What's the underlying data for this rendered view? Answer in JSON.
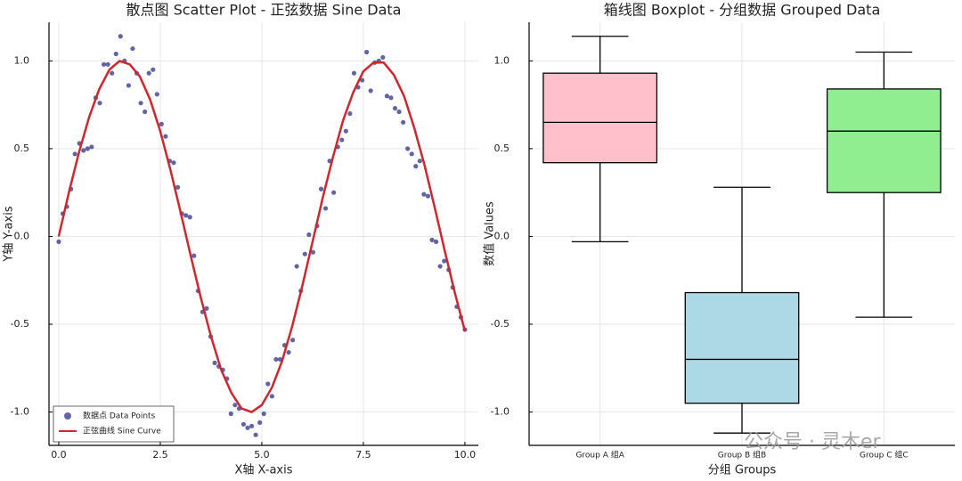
{
  "chart_data": [
    {
      "type": "scatter",
      "title": "散点图 Scatter Plot - 正弦数据 Sine Data",
      "xlabel": "X轴 X-axis",
      "ylabel": "Y轴 Y-axis",
      "xlim": [
        -0.24,
        10.33
      ],
      "ylim": [
        -1.19,
        1.22
      ],
      "xticks": [
        {
          "value": 0,
          "label": "0.0"
        },
        {
          "value": 2.5,
          "label": "2.5"
        },
        {
          "value": 5,
          "label": "5.0"
        },
        {
          "value": 7.5,
          "label": "7.5"
        },
        {
          "value": 10,
          "label": "10.0"
        }
      ],
      "yticks": [
        {
          "value": -1,
          "label": "-1.0"
        },
        {
          "value": -0.5,
          "label": "-0.5"
        },
        {
          "value": 0,
          "label": "0.0"
        },
        {
          "value": 0.5,
          "label": "0.5"
        },
        {
          "value": 1,
          "label": "1.0"
        }
      ],
      "grid": true,
      "legend": "bottom left",
      "series": [
        {
          "name": "数据点 Data Points",
          "type": "scatter",
          "color": "#3b3f8f",
          "x": [
            0.0,
            0.1,
            0.2,
            0.3,
            0.4,
            0.51,
            0.61,
            0.71,
            0.81,
            0.91,
            1.01,
            1.11,
            1.21,
            1.31,
            1.41,
            1.52,
            1.62,
            1.72,
            1.82,
            1.92,
            2.02,
            2.12,
            2.22,
            2.32,
            2.42,
            2.53,
            2.63,
            2.73,
            2.83,
            2.93,
            3.03,
            3.13,
            3.23,
            3.33,
            3.43,
            3.54,
            3.64,
            3.74,
            3.84,
            3.94,
            4.04,
            4.14,
            4.24,
            4.34,
            4.44,
            4.55,
            4.65,
            4.75,
            4.85,
            4.95,
            5.05,
            5.15,
            5.25,
            5.35,
            5.45,
            5.56,
            5.66,
            5.76,
            5.86,
            5.96,
            6.06,
            6.16,
            6.26,
            6.36,
            6.46,
            6.57,
            6.67,
            6.77,
            6.87,
            6.97,
            7.07,
            7.17,
            7.27,
            7.37,
            7.47,
            7.58,
            7.68,
            7.78,
            7.88,
            7.98,
            8.08,
            8.18,
            8.28,
            8.38,
            8.48,
            8.59,
            8.69,
            8.79,
            8.89,
            8.99,
            9.09,
            9.19,
            9.29,
            9.39,
            9.49,
            9.6,
            9.7,
            9.8,
            9.9,
            10.0
          ],
          "values": [
            -0.03,
            0.13,
            0.17,
            0.27,
            0.47,
            0.53,
            0.49,
            0.5,
            0.51,
            0.79,
            0.76,
            0.98,
            0.98,
            0.93,
            1.04,
            1.14,
            1.0,
            0.86,
            1.07,
            0.93,
            0.76,
            0.71,
            0.93,
            0.95,
            0.81,
            0.64,
            0.57,
            0.43,
            0.42,
            0.28,
            0.13,
            0.12,
            0.11,
            -0.11,
            -0.31,
            -0.43,
            -0.41,
            -0.57,
            -0.72,
            -0.74,
            -0.76,
            -0.81,
            -1.01,
            -0.96,
            -0.98,
            -1.07,
            -1.09,
            -1.08,
            -1.13,
            -1.06,
            -1.01,
            -0.84,
            -0.91,
            -0.7,
            -0.7,
            -0.62,
            -0.66,
            -0.59,
            -0.17,
            -0.31,
            -0.1,
            0.01,
            -0.09,
            0.06,
            0.27,
            0.16,
            0.43,
            0.25,
            0.51,
            0.55,
            0.6,
            0.7,
            0.93,
            0.85,
            0.89,
            1.05,
            0.83,
            0.99,
            1.0,
            1.02,
            0.8,
            0.79,
            0.73,
            0.71,
            0.65,
            0.5,
            0.47,
            0.4,
            0.43,
            0.24,
            0.23,
            -0.02,
            -0.03,
            -0.17,
            -0.14,
            -0.19,
            -0.29,
            -0.4,
            -0.46,
            -0.53
          ]
        },
        {
          "name": "正弦曲线 Sine Curve",
          "type": "line",
          "color": "#d0262d",
          "x": [
            0,
            0.25,
            0.5,
            0.75,
            1,
            1.25,
            1.5,
            1.75,
            2,
            2.25,
            2.5,
            2.75,
            3,
            3.25,
            3.5,
            3.75,
            4,
            4.25,
            4.5,
            4.75,
            5,
            5.25,
            5.5,
            5.75,
            6,
            6.25,
            6.5,
            6.75,
            7,
            7.25,
            7.5,
            7.75,
            8,
            8.25,
            8.5,
            8.75,
            9,
            9.25,
            9.5,
            9.75,
            10
          ],
          "values": [
            0,
            0.25,
            0.48,
            0.68,
            0.84,
            0.95,
            1.0,
            0.98,
            0.91,
            0.78,
            0.6,
            0.38,
            0.14,
            -0.11,
            -0.35,
            -0.57,
            -0.76,
            -0.89,
            -0.98,
            -1.0,
            -0.96,
            -0.86,
            -0.71,
            -0.51,
            -0.28,
            -0.03,
            0.22,
            0.45,
            0.66,
            0.82,
            0.94,
            0.99,
            0.99,
            0.92,
            0.8,
            0.62,
            0.41,
            0.17,
            -0.08,
            -0.32,
            -0.54
          ]
        }
      ]
    },
    {
      "type": "box",
      "title": "箱线图 Boxplot - 分组数据 Grouped Data",
      "xlabel": "分组 Groups",
      "ylabel": "数值 Values",
      "ylim": [
        -1.19,
        1.22
      ],
      "yticks": [
        {
          "value": -1,
          "label": "-1.0"
        },
        {
          "value": -0.5,
          "label": "-0.5"
        },
        {
          "value": 0,
          "label": "0.0"
        },
        {
          "value": 0.5,
          "label": "0.5"
        },
        {
          "value": 1,
          "label": "1.0"
        }
      ],
      "grid": true,
      "categories": [
        "Group A 组A",
        "Group B 组B",
        "Group C 组C"
      ],
      "colors": [
        "#ffc0cb",
        "#add8e6",
        "#90ee90"
      ],
      "min": [
        -0.03,
        -1.12,
        -0.46
      ],
      "q1": [
        0.42,
        -0.95,
        0.25
      ],
      "median": [
        0.65,
        -0.7,
        0.6
      ],
      "q3": [
        0.93,
        -0.32,
        0.84
      ],
      "max": [
        1.14,
        0.28,
        1.05
      ]
    }
  ],
  "watermark": "公众号 · 灵木er"
}
